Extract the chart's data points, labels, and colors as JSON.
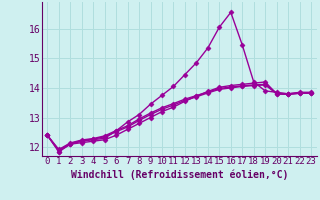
{
  "xlabel": "Windchill (Refroidissement éolien,°C)",
  "background_color": "#cff0f0",
  "grid_color": "#b0dede",
  "line_color": "#990099",
  "xlim": [
    -0.5,
    23.5
  ],
  "ylim": [
    11.7,
    16.9
  ],
  "xtick_labels": [
    "0",
    "1",
    "2",
    "3",
    "4",
    "5",
    "6",
    "7",
    "8",
    "9",
    "10",
    "11",
    "12",
    "13",
    "14",
    "15",
    "16",
    "17",
    "18",
    "19",
    "20",
    "21",
    "22",
    "23"
  ],
  "ytick_values": [
    12,
    13,
    14,
    15,
    16
  ],
  "line1": [
    12.4,
    11.85,
    12.1,
    12.2,
    12.25,
    12.3,
    12.55,
    12.85,
    13.1,
    13.45,
    13.75,
    14.05,
    14.45,
    14.85,
    15.35,
    16.05,
    16.55,
    15.45,
    14.2,
    13.9,
    13.85,
    13.8,
    13.85,
    13.85
  ],
  "line2": [
    12.4,
    11.85,
    12.1,
    12.15,
    12.2,
    12.25,
    12.4,
    12.6,
    12.8,
    13.0,
    13.2,
    13.35,
    13.55,
    13.72,
    13.88,
    14.02,
    14.08,
    14.12,
    14.16,
    14.2,
    13.8,
    13.78,
    13.82,
    13.82
  ],
  "line3": [
    12.4,
    11.9,
    12.12,
    12.22,
    12.27,
    12.35,
    12.52,
    12.68,
    12.9,
    13.1,
    13.28,
    13.42,
    13.58,
    13.7,
    13.83,
    13.95,
    14.0,
    14.05,
    14.08,
    14.1,
    13.8,
    13.78,
    13.82,
    13.82
  ],
  "line4": [
    12.4,
    11.92,
    12.14,
    12.24,
    12.29,
    12.38,
    12.56,
    12.72,
    12.95,
    13.15,
    13.33,
    13.47,
    13.62,
    13.74,
    13.86,
    13.98,
    14.03,
    14.07,
    14.1,
    14.12,
    13.82,
    13.8,
    13.84,
    13.84
  ],
  "marker": "D",
  "markersize": 2.5,
  "linewidth": 1.0,
  "xlabel_fontsize": 7,
  "tick_fontsize": 6.5
}
